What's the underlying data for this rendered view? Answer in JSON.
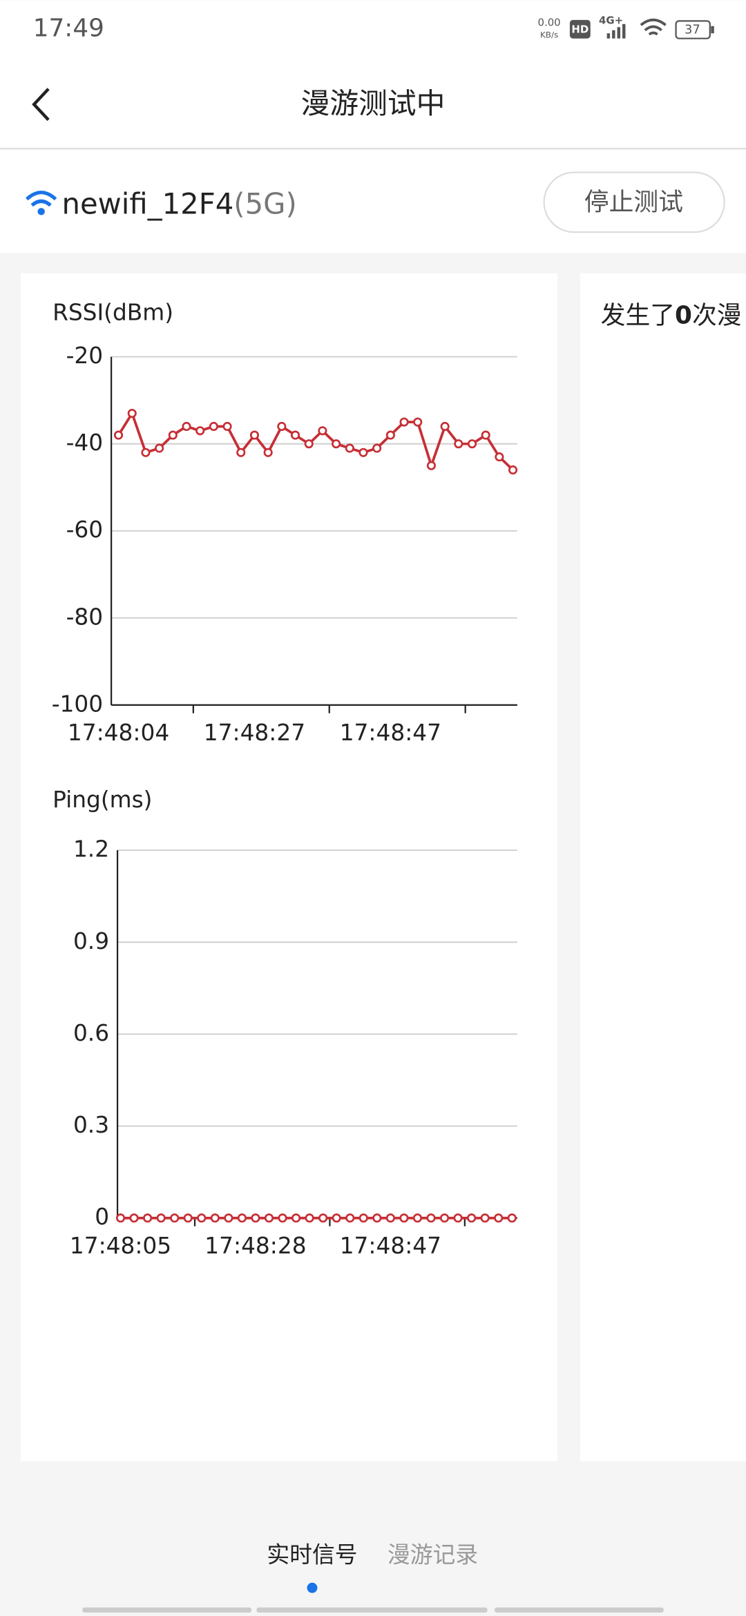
{
  "status_bar": {
    "time": "17:49",
    "speed_value": "0.00",
    "speed_unit": "KB/s",
    "hd": "HD",
    "network": "4G+",
    "battery": "37"
  },
  "header": {
    "title": "漫游测试中"
  },
  "network": {
    "ssid": "newifi_12F4",
    "band": "(5G)",
    "button": "停止测试"
  },
  "chart_data": [
    {
      "type": "line",
      "title": "RSSI(dBm)",
      "categories": [
        "17:48:04",
        null,
        null,
        null,
        null,
        null,
        null,
        null,
        null,
        null,
        "17:48:27",
        null,
        null,
        null,
        null,
        null,
        null,
        null,
        null,
        null,
        "17:48:47",
        null,
        null,
        null,
        null,
        null,
        null,
        null,
        null,
        null
      ],
      "series": [
        {
          "color": "#c62f36",
          "values": [
            -38,
            -33,
            -42,
            -41,
            -38,
            -36,
            -37,
            -36,
            -36,
            -42,
            -38,
            -42,
            -36,
            -38,
            -40,
            -37,
            -40,
            -41,
            -42,
            -41,
            -38,
            -35,
            -35,
            -45,
            -36,
            -40,
            -40,
            -38,
            -43,
            -46
          ]
        }
      ],
      "ylim": [
        -100,
        -20
      ],
      "yticks": [
        -100,
        -80,
        -60,
        -40,
        -20
      ],
      "grid": true
    },
    {
      "type": "line",
      "title": "Ping(ms)",
      "categories": [
        "17:48:05",
        null,
        null,
        null,
        null,
        null,
        null,
        null,
        null,
        null,
        "17:48:28",
        null,
        null,
        null,
        null,
        null,
        null,
        null,
        null,
        null,
        "17:48:47",
        null,
        null,
        null,
        null,
        null,
        null,
        null,
        null,
        null
      ],
      "series": [
        {
          "color": "#c62f36",
          "values": [
            0,
            0,
            0,
            0,
            0,
            0,
            0,
            0,
            0,
            0,
            0,
            0,
            0,
            0,
            0,
            0,
            0,
            0,
            0,
            0,
            0,
            0,
            0,
            0,
            0,
            0,
            0,
            0,
            0,
            0
          ]
        }
      ],
      "ylim": [
        0,
        1.2
      ],
      "yticks": [
        0,
        0.3,
        0.6,
        0.9,
        1.2
      ],
      "grid": true
    }
  ],
  "side_panel": {
    "text_before": "发生了",
    "count": "0",
    "text_after": "次漫"
  },
  "tabs": {
    "active": "实时信号",
    "inactive": "漫游记录"
  }
}
